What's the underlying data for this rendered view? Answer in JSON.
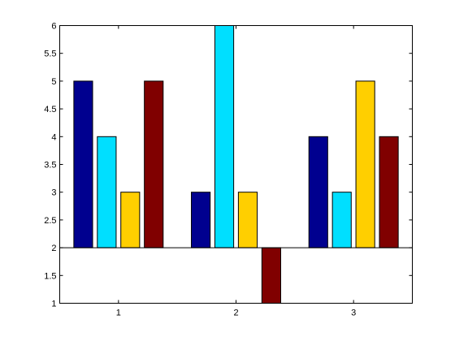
{
  "chart_data": {
    "type": "bar",
    "categories": [
      "1",
      "2",
      "3"
    ],
    "series": [
      {
        "values": [
          5,
          3,
          4
        ],
        "color": "#00008F"
      },
      {
        "values": [
          4,
          6,
          3
        ],
        "color": "#00DFFF"
      },
      {
        "values": [
          3,
          3,
          5
        ],
        "color": "#FFCF00"
      },
      {
        "values": [
          5,
          1,
          4
        ],
        "color": "#800000"
      }
    ],
    "baseline": 2,
    "ylim": [
      1,
      6
    ],
    "yticks": [
      "1",
      "1.5",
      "2",
      "2.5",
      "3",
      "3.5",
      "4",
      "4.5",
      "5",
      "5.5",
      "6"
    ],
    "grid": false,
    "title": "",
    "xlabel": "",
    "ylabel": ""
  }
}
